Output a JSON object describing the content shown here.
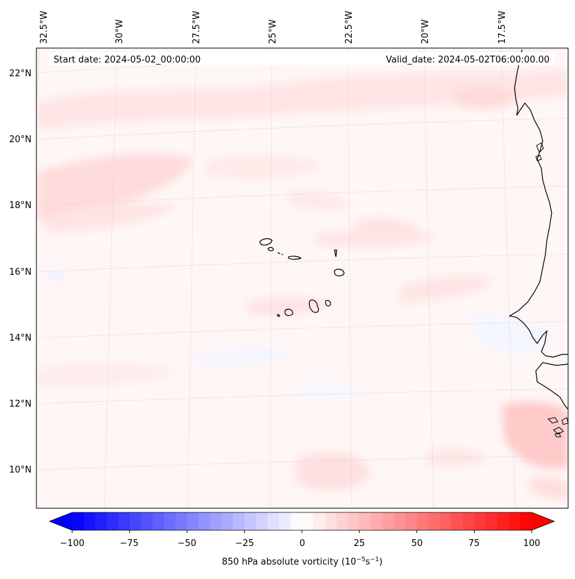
{
  "map": {
    "start_date_text": "Start date: 2024-05-02_00:00:00",
    "valid_date_text": "Valid_date: 2024-05-02T06:00:00.00",
    "lon_labels": [
      "32.5°W",
      "30°W",
      "27.5°W",
      "25°W",
      "22.5°W",
      "20°W",
      "17.5°W"
    ],
    "lat_labels": [
      "22°N",
      "20°N",
      "18°N",
      "16°N",
      "14°N",
      "12°N",
      "10°N"
    ],
    "field": "850 hPa absolute vorticity",
    "ocean_fill": "#fff6f6",
    "positive_color": "#ff0000",
    "negative_color": "#0000ff"
  },
  "colorbar": {
    "label": "850 hPa absolute vorticity (10⁻⁵s⁻¹)",
    "ticks": [
      "−100",
      "−75",
      "−50",
      "−25",
      "0",
      "25",
      "50",
      "75",
      "100"
    ],
    "min": -100,
    "max": 100,
    "levels": 41,
    "extend": "both"
  }
}
